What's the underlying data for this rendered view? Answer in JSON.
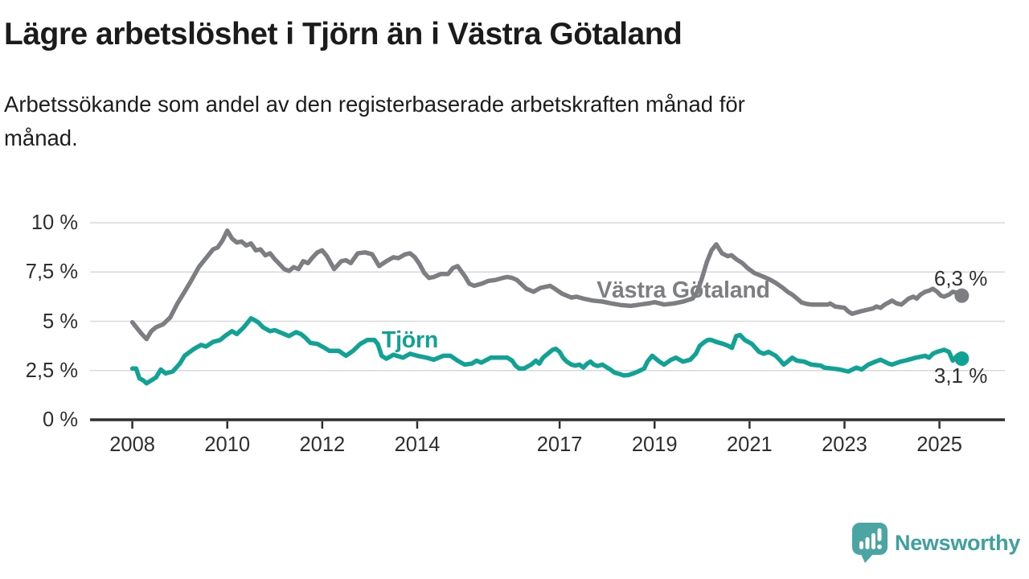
{
  "chart_data": {
    "type": "line",
    "title": "Lägre arbetslöshet i Tjörn än i Västra Götaland",
    "subtitle": "Arbetssökande som andel av den registerbaserade arbetskraften månad för\nmånad.",
    "unit": "%",
    "grid": "horizontal",
    "legend_position": "inline-labels",
    "xlim": [
      2007.1,
      2026.4
    ],
    "ylim": [
      0,
      10
    ],
    "x_ticks": [
      "2008",
      "2010",
      "2012",
      "2014",
      "2017",
      "2019",
      "2021",
      "2023",
      "2025"
    ],
    "y_ticks": [
      {
        "value": 0,
        "label": "0 %"
      },
      {
        "value": 2.5,
        "label": "2,5 %"
      },
      {
        "value": 5,
        "label": "5 %"
      },
      {
        "value": 7.5,
        "label": "7,5 %"
      },
      {
        "value": 10,
        "label": "10 %"
      }
    ],
    "series": [
      {
        "id": "vastra-gotaland",
        "name": "Västra Götaland",
        "color": "#7d7e82",
        "end_label": "6,3 %",
        "last_value": 6.3,
        "points": [
          [
            2008.0,
            4.95
          ],
          [
            2008.1,
            4.65
          ],
          [
            2008.2,
            4.35
          ],
          [
            2008.3,
            4.1
          ],
          [
            2008.4,
            4.5
          ],
          [
            2008.5,
            4.7
          ],
          [
            2008.65,
            4.85
          ],
          [
            2008.8,
            5.2
          ],
          [
            2008.95,
            5.9
          ],
          [
            2009.1,
            6.5
          ],
          [
            2009.25,
            7.1
          ],
          [
            2009.4,
            7.75
          ],
          [
            2009.55,
            8.2
          ],
          [
            2009.7,
            8.65
          ],
          [
            2009.8,
            8.75
          ],
          [
            2009.9,
            9.1
          ],
          [
            2010.0,
            9.6
          ],
          [
            2010.1,
            9.2
          ],
          [
            2010.2,
            9.0
          ],
          [
            2010.3,
            9.05
          ],
          [
            2010.4,
            8.85
          ],
          [
            2010.5,
            8.95
          ],
          [
            2010.6,
            8.6
          ],
          [
            2010.7,
            8.65
          ],
          [
            2010.8,
            8.35
          ],
          [
            2010.9,
            8.45
          ],
          [
            2011.0,
            8.15
          ],
          [
            2011.1,
            7.9
          ],
          [
            2011.2,
            7.65
          ],
          [
            2011.3,
            7.55
          ],
          [
            2011.4,
            7.75
          ],
          [
            2011.5,
            7.65
          ],
          [
            2011.6,
            8.05
          ],
          [
            2011.7,
            7.95
          ],
          [
            2011.8,
            8.25
          ],
          [
            2011.9,
            8.5
          ],
          [
            2012.0,
            8.6
          ],
          [
            2012.1,
            8.3
          ],
          [
            2012.25,
            7.65
          ],
          [
            2012.4,
            8.05
          ],
          [
            2012.5,
            8.1
          ],
          [
            2012.6,
            7.95
          ],
          [
            2012.75,
            8.45
          ],
          [
            2012.9,
            8.5
          ],
          [
            2013.05,
            8.4
          ],
          [
            2013.2,
            7.8
          ],
          [
            2013.35,
            8.05
          ],
          [
            2013.5,
            8.25
          ],
          [
            2013.6,
            8.2
          ],
          [
            2013.75,
            8.4
          ],
          [
            2013.85,
            8.45
          ],
          [
            2013.95,
            8.25
          ],
          [
            2014.05,
            7.9
          ],
          [
            2014.15,
            7.45
          ],
          [
            2014.25,
            7.2
          ],
          [
            2014.35,
            7.25
          ],
          [
            2014.5,
            7.4
          ],
          [
            2014.65,
            7.4
          ],
          [
            2014.75,
            7.7
          ],
          [
            2014.85,
            7.8
          ],
          [
            2015.0,
            7.3
          ],
          [
            2015.1,
            6.9
          ],
          [
            2015.2,
            6.8
          ],
          [
            2015.35,
            6.9
          ],
          [
            2015.5,
            7.05
          ],
          [
            2015.65,
            7.1
          ],
          [
            2015.8,
            7.2
          ],
          [
            2015.9,
            7.25
          ],
          [
            2016.0,
            7.2
          ],
          [
            2016.1,
            7.1
          ],
          [
            2016.3,
            6.65
          ],
          [
            2016.45,
            6.5
          ],
          [
            2016.6,
            6.7
          ],
          [
            2016.8,
            6.8
          ],
          [
            2016.9,
            6.65
          ],
          [
            2017.05,
            6.4
          ],
          [
            2017.25,
            6.2
          ],
          [
            2017.35,
            6.25
          ],
          [
            2017.5,
            6.15
          ],
          [
            2017.7,
            6.05
          ],
          [
            2017.9,
            6.0
          ],
          [
            2018.1,
            5.9
          ],
          [
            2018.3,
            5.82
          ],
          [
            2018.5,
            5.78
          ],
          [
            2018.7,
            5.85
          ],
          [
            2018.9,
            5.92
          ],
          [
            2019.0,
            5.97
          ],
          [
            2019.2,
            5.85
          ],
          [
            2019.4,
            5.9
          ],
          [
            2019.6,
            6.0
          ],
          [
            2019.8,
            6.15
          ],
          [
            2019.9,
            6.5
          ],
          [
            2020.0,
            7.2
          ],
          [
            2020.1,
            8.0
          ],
          [
            2020.2,
            8.6
          ],
          [
            2020.3,
            8.9
          ],
          [
            2020.42,
            8.45
          ],
          [
            2020.54,
            8.3
          ],
          [
            2020.62,
            8.35
          ],
          [
            2020.72,
            8.15
          ],
          [
            2020.85,
            7.95
          ],
          [
            2020.96,
            7.7
          ],
          [
            2021.1,
            7.45
          ],
          [
            2021.25,
            7.3
          ],
          [
            2021.4,
            7.15
          ],
          [
            2021.55,
            6.95
          ],
          [
            2021.7,
            6.7
          ],
          [
            2021.8,
            6.5
          ],
          [
            2021.9,
            6.35
          ],
          [
            2022.0,
            6.15
          ],
          [
            2022.1,
            5.95
          ],
          [
            2022.2,
            5.88
          ],
          [
            2022.3,
            5.85
          ],
          [
            2022.5,
            5.85
          ],
          [
            2022.65,
            5.85
          ],
          [
            2022.7,
            5.9
          ],
          [
            2022.8,
            5.75
          ],
          [
            2023.0,
            5.68
          ],
          [
            2023.08,
            5.5
          ],
          [
            2023.16,
            5.38
          ],
          [
            2023.33,
            5.5
          ],
          [
            2023.42,
            5.55
          ],
          [
            2023.6,
            5.65
          ],
          [
            2023.67,
            5.75
          ],
          [
            2023.76,
            5.68
          ],
          [
            2023.85,
            5.85
          ],
          [
            2023.93,
            5.95
          ],
          [
            2024.0,
            6.05
          ],
          [
            2024.1,
            5.9
          ],
          [
            2024.2,
            5.85
          ],
          [
            2024.35,
            6.15
          ],
          [
            2024.45,
            6.25
          ],
          [
            2024.52,
            6.15
          ],
          [
            2024.6,
            6.35
          ],
          [
            2024.7,
            6.5
          ],
          [
            2024.78,
            6.55
          ],
          [
            2024.86,
            6.65
          ],
          [
            2024.95,
            6.5
          ],
          [
            2025.03,
            6.3
          ],
          [
            2025.1,
            6.25
          ],
          [
            2025.2,
            6.35
          ],
          [
            2025.28,
            6.5
          ],
          [
            2025.37,
            6.45
          ],
          [
            2025.47,
            6.3
          ]
        ]
      },
      {
        "id": "tjorn",
        "name": "Tjörn",
        "color": "#10a295",
        "end_label": "3,1 %",
        "last_value": 3.1,
        "points": [
          [
            2008.0,
            2.6
          ],
          [
            2008.08,
            2.6
          ],
          [
            2008.15,
            2.1
          ],
          [
            2008.23,
            2.0
          ],
          [
            2008.3,
            1.85
          ],
          [
            2008.4,
            2.0
          ],
          [
            2008.5,
            2.15
          ],
          [
            2008.6,
            2.55
          ],
          [
            2008.7,
            2.35
          ],
          [
            2008.85,
            2.45
          ],
          [
            2009.0,
            2.85
          ],
          [
            2009.1,
            3.25
          ],
          [
            2009.3,
            3.6
          ],
          [
            2009.45,
            3.8
          ],
          [
            2009.55,
            3.72
          ],
          [
            2009.7,
            3.95
          ],
          [
            2009.85,
            4.05
          ],
          [
            2009.95,
            4.25
          ],
          [
            2010.1,
            4.5
          ],
          [
            2010.2,
            4.35
          ],
          [
            2010.35,
            4.7
          ],
          [
            2010.5,
            5.15
          ],
          [
            2010.65,
            4.95
          ],
          [
            2010.75,
            4.7
          ],
          [
            2010.9,
            4.5
          ],
          [
            2011.0,
            4.55
          ],
          [
            2011.2,
            4.35
          ],
          [
            2011.3,
            4.25
          ],
          [
            2011.45,
            4.45
          ],
          [
            2011.55,
            4.35
          ],
          [
            2011.65,
            4.15
          ],
          [
            2011.75,
            3.9
          ],
          [
            2011.9,
            3.85
          ],
          [
            2012.05,
            3.65
          ],
          [
            2012.15,
            3.5
          ],
          [
            2012.35,
            3.5
          ],
          [
            2012.5,
            3.25
          ],
          [
            2012.65,
            3.5
          ],
          [
            2012.8,
            3.85
          ],
          [
            2012.95,
            4.05
          ],
          [
            2013.1,
            4.05
          ],
          [
            2013.17,
            3.85
          ],
          [
            2013.25,
            3.25
          ],
          [
            2013.35,
            3.1
          ],
          [
            2013.5,
            3.3
          ],
          [
            2013.7,
            3.15
          ],
          [
            2013.85,
            3.35
          ],
          [
            2014.0,
            3.25
          ],
          [
            2014.2,
            3.15
          ],
          [
            2014.35,
            3.05
          ],
          [
            2014.55,
            3.25
          ],
          [
            2014.7,
            3.25
          ],
          [
            2014.85,
            3.0
          ],
          [
            2015.0,
            2.8
          ],
          [
            2015.15,
            2.85
          ],
          [
            2015.25,
            3.0
          ],
          [
            2015.35,
            2.9
          ],
          [
            2015.55,
            3.15
          ],
          [
            2015.9,
            3.15
          ],
          [
            2016.0,
            3.0
          ],
          [
            2016.07,
            2.75
          ],
          [
            2016.15,
            2.6
          ],
          [
            2016.25,
            2.6
          ],
          [
            2016.4,
            2.8
          ],
          [
            2016.5,
            3.0
          ],
          [
            2016.57,
            2.85
          ],
          [
            2016.65,
            3.15
          ],
          [
            2016.75,
            3.35
          ],
          [
            2016.85,
            3.55
          ],
          [
            2016.92,
            3.6
          ],
          [
            2017.0,
            3.45
          ],
          [
            2017.07,
            3.15
          ],
          [
            2017.15,
            2.95
          ],
          [
            2017.25,
            2.8
          ],
          [
            2017.33,
            2.75
          ],
          [
            2017.42,
            2.8
          ],
          [
            2017.5,
            2.65
          ],
          [
            2017.58,
            2.85
          ],
          [
            2017.65,
            2.95
          ],
          [
            2017.72,
            2.8
          ],
          [
            2017.8,
            2.73
          ],
          [
            2017.9,
            2.8
          ],
          [
            2018.0,
            2.65
          ],
          [
            2018.07,
            2.55
          ],
          [
            2018.15,
            2.4
          ],
          [
            2018.25,
            2.33
          ],
          [
            2018.35,
            2.25
          ],
          [
            2018.45,
            2.27
          ],
          [
            2018.55,
            2.35
          ],
          [
            2018.65,
            2.45
          ],
          [
            2018.78,
            2.6
          ],
          [
            2018.85,
            2.95
          ],
          [
            2018.95,
            3.25
          ],
          [
            2019.1,
            2.95
          ],
          [
            2019.2,
            2.8
          ],
          [
            2019.35,
            3.05
          ],
          [
            2019.45,
            3.15
          ],
          [
            2019.6,
            2.95
          ],
          [
            2019.75,
            3.05
          ],
          [
            2019.87,
            3.35
          ],
          [
            2019.95,
            3.75
          ],
          [
            2020.05,
            3.95
          ],
          [
            2020.12,
            4.05
          ],
          [
            2020.2,
            4.05
          ],
          [
            2020.3,
            3.95
          ],
          [
            2020.45,
            3.85
          ],
          [
            2020.55,
            3.75
          ],
          [
            2020.63,
            3.65
          ],
          [
            2020.72,
            4.25
          ],
          [
            2020.8,
            4.3
          ],
          [
            2020.9,
            4.05
          ],
          [
            2021.05,
            3.85
          ],
          [
            2021.2,
            3.45
          ],
          [
            2021.3,
            3.35
          ],
          [
            2021.4,
            3.45
          ],
          [
            2021.55,
            3.25
          ],
          [
            2021.65,
            3.0
          ],
          [
            2021.72,
            2.8
          ],
          [
            2021.8,
            2.95
          ],
          [
            2021.9,
            3.15
          ],
          [
            2022.0,
            3.0
          ],
          [
            2022.15,
            2.95
          ],
          [
            2022.3,
            2.8
          ],
          [
            2022.5,
            2.75
          ],
          [
            2022.57,
            2.65
          ],
          [
            2022.75,
            2.6
          ],
          [
            2022.9,
            2.55
          ],
          [
            2023.08,
            2.45
          ],
          [
            2023.25,
            2.65
          ],
          [
            2023.36,
            2.55
          ],
          [
            2023.5,
            2.8
          ],
          [
            2023.65,
            2.95
          ],
          [
            2023.76,
            3.05
          ],
          [
            2023.93,
            2.85
          ],
          [
            2024.0,
            2.8
          ],
          [
            2024.18,
            2.95
          ],
          [
            2024.27,
            3.0
          ],
          [
            2024.35,
            3.05
          ],
          [
            2024.5,
            3.15
          ],
          [
            2024.7,
            3.25
          ],
          [
            2024.78,
            3.15
          ],
          [
            2024.86,
            3.35
          ],
          [
            2024.95,
            3.45
          ],
          [
            2025.1,
            3.55
          ],
          [
            2025.2,
            3.45
          ],
          [
            2025.28,
            3.0
          ],
          [
            2025.37,
            3.25
          ],
          [
            2025.47,
            3.1
          ]
        ]
      }
    ],
    "colors": {
      "grid": "#d9d9d9",
      "axis": "#2e2e2e",
      "tick_text": "#2f2f2f"
    }
  },
  "branding": {
    "logo_text": "Newsworthy",
    "logo_icon_color": "#4aa5a3",
    "logo_text_color": "#3fa0a0"
  }
}
